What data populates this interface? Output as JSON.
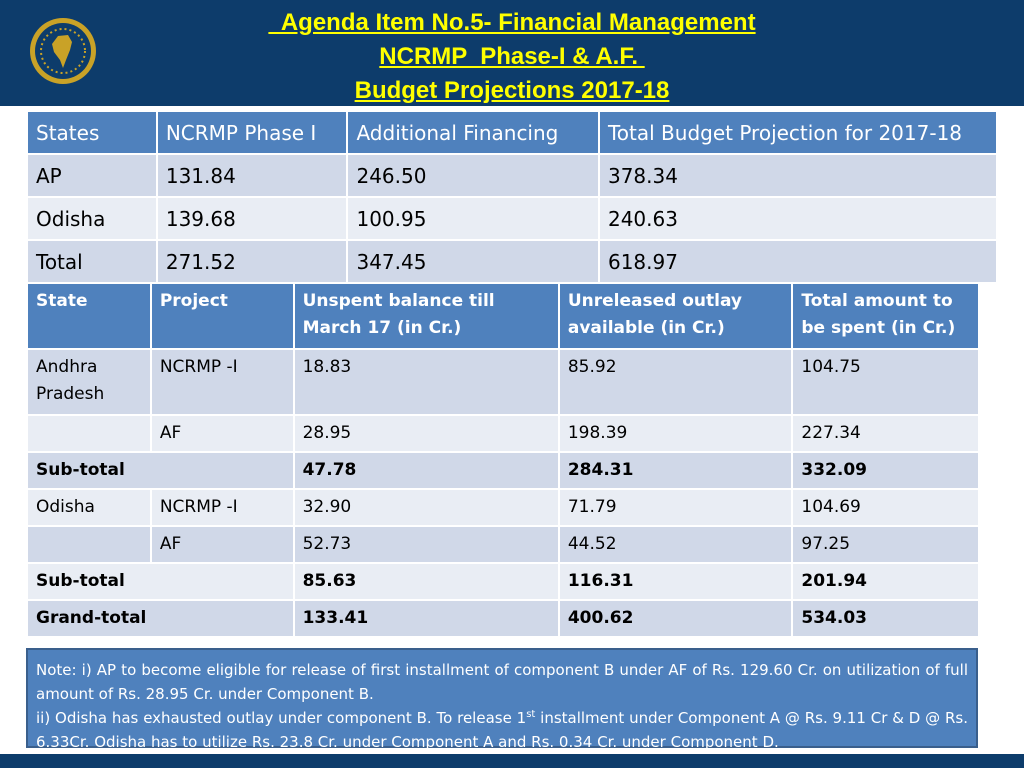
{
  "title": {
    "line1": "  Agenda Item No.5- Financial Management",
    "line2": "NCRMP  Phase-I & A.F. ",
    "line3": "Budget Projections 2017-18"
  },
  "logo": {
    "icon": "ncrmp-emblem-logo"
  },
  "colors": {
    "header": "#0d3c6b",
    "title": "#ffff00",
    "table_head": "#4f81bd",
    "row": "#d0d8e8",
    "row_alt": "#e9edf4"
  },
  "table1": {
    "headers": [
      "States",
      "NCRMP Phase I",
      "Additional Financing",
      "Total Budget Projection for 2017-18"
    ],
    "rows": [
      [
        "AP",
        "131.84",
        "246.50",
        "378.34"
      ],
      [
        "Odisha",
        "139.68",
        "100.95",
        "240.63"
      ],
      [
        "Total",
        "271.52",
        "347.45",
        "618.97"
      ]
    ]
  },
  "table2": {
    "headers": [
      "State",
      "Project",
      "Unspent balance till March 17 (in  Cr.)",
      "Unreleased outlay available (in Cr.)",
      "Total amount to be spent (in Cr.)"
    ],
    "rows": [
      [
        "Andhra Pradesh",
        "NCRMP -I",
        "18.83",
        "85.92",
        "104.75"
      ],
      [
        "",
        "AF",
        "28.95",
        "198.39",
        "227.34"
      ],
      [
        "Sub-total",
        "47.78",
        "284.31",
        "332.09"
      ],
      [
        "Odisha",
        "NCRMP -I",
        "32.90",
        "71.79",
        "104.69"
      ],
      [
        "",
        "AF",
        "52.73",
        "44.52",
        "97.25"
      ],
      [
        "Sub-total",
        "85.63",
        "116.31",
        "201.94"
      ],
      [
        "Grand-total",
        "133.41",
        "400.62",
        "534.03"
      ]
    ]
  },
  "note": {
    "line1": "Note: i) AP to become eligible for release of first installment of component B under AF of Rs. 129.60 Cr. on utilization of full amount of Rs. 28.95 Cr. under Component B.",
    "line2_a": "ii) Odisha has exhausted outlay under component B.  To release 1",
    "line2_sup": "st",
    "line2_b": " installment under Component A @ Rs. 9.11 Cr & D @ Rs. 6.33Cr. Odisha has to utilize Rs. 23.8 Cr. under Component A and Rs. 0.34 Cr. under Component D."
  }
}
